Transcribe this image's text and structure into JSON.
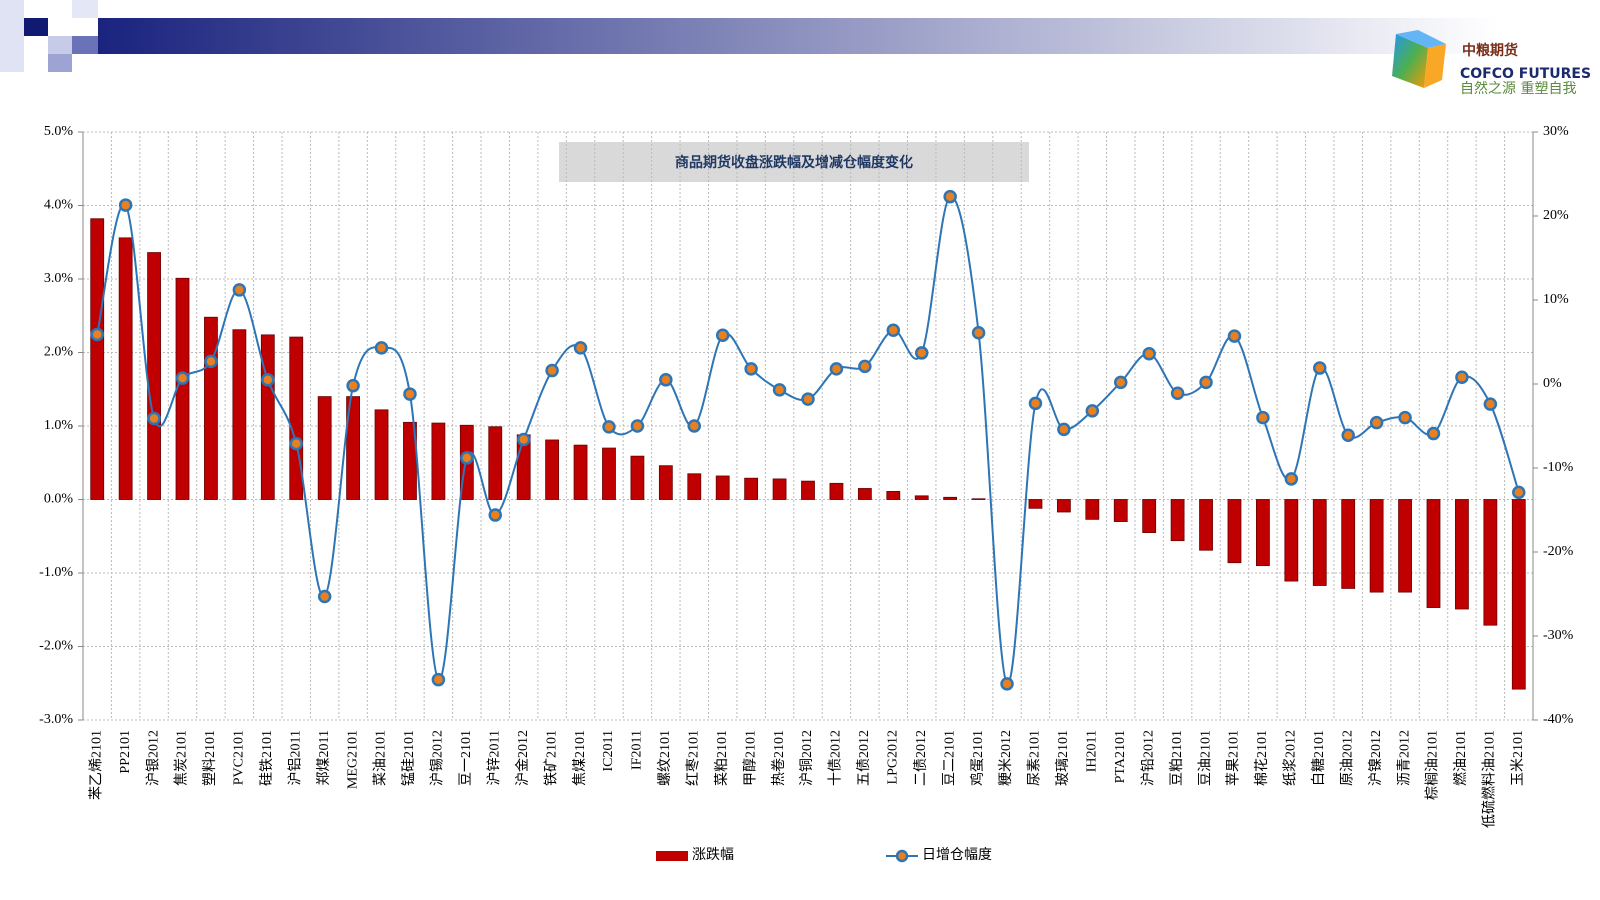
{
  "header": {
    "logo_name": "中粮期货",
    "logo_en": "COFCO FUTURES",
    "logo_slogan": "自然之源 重塑自我"
  },
  "chart_data": {
    "type": "bar-line",
    "title": "商品期货收盘涨跌幅及增减仓幅度变化",
    "categories": [
      "苯乙烯2101",
      "PP2101",
      "沪银2012",
      "焦炭2101",
      "塑料2101",
      "PVC2101",
      "硅铁2101",
      "沪铝2011",
      "郑煤2011",
      "MEG2101",
      "菜油2101",
      "锰硅2101",
      "沪锡2012",
      "豆一2101",
      "沪锌2011",
      "沪金2012",
      "铁矿2101",
      "焦煤2101",
      "IC2011",
      "IF2011",
      "螺纹2101",
      "红枣2101",
      "菜粕2101",
      "甲醇2101",
      "热卷2101",
      "沪铜2012",
      "十债2012",
      "五债2012",
      "LPG2012",
      "二债2012",
      "豆二2101",
      "鸡蛋2101",
      "粳米2012",
      "尿素2101",
      "玻璃2101",
      "IH2011",
      "PTA2101",
      "沪铅2012",
      "豆粕2101",
      "豆油2101",
      "苹果2101",
      "棉花2101",
      "纸浆2012",
      "白糖2101",
      "原油2012",
      "沪镍2012",
      "沥青2012",
      "棕榈油2101",
      "燃油2101",
      "低硫燃料油2101",
      "玉米2101"
    ],
    "series": [
      {
        "name": "涨跌幅",
        "color": "#c00000",
        "kind": "bar",
        "axis": "y",
        "values": [
          3.82,
          3.56,
          3.36,
          3.01,
          2.48,
          2.31,
          2.24,
          2.21,
          1.4,
          1.4,
          1.22,
          1.05,
          1.04,
          1.01,
          0.99,
          0.88,
          0.81,
          0.74,
          0.7,
          0.59,
          0.46,
          0.35,
          0.32,
          0.29,
          0.28,
          0.25,
          0.22,
          0.15,
          0.11,
          0.05,
          0.03,
          0.01,
          0,
          -0.12,
          -0.17,
          -0.27,
          -0.3,
          -0.45,
          -0.56,
          -0.69,
          -0.86,
          -0.9,
          -1.11,
          -1.17,
          -1.21,
          -1.26,
          -1.26,
          -1.47,
          -1.49,
          -1.71,
          -2.58
        ]
      },
      {
        "name": "日增仓幅度",
        "color": "#2e75b6",
        "marker_color": "#e8801f",
        "kind": "line",
        "axis": "y2",
        "values": [
          5.9,
          21.3,
          -4.1,
          0.7,
          2.7,
          11.2,
          0.5,
          -7.1,
          -25.3,
          -0.2,
          4.3,
          -1.2,
          -35.2,
          -8.8,
          -15.6,
          -6.6,
          1.6,
          4.3,
          -5.1,
          -5.0,
          0.5,
          -5.0,
          5.8,
          1.8,
          -0.7,
          -1.8,
          1.8,
          2.1,
          6.4,
          3.7,
          22.3,
          6.1,
          -35.7,
          -2.3,
          -5.4,
          -3.2,
          0.2,
          3.6,
          -1.1,
          0.2,
          5.7,
          -4.0,
          -11.3,
          1.9,
          -6.1,
          -4.6,
          -4.0,
          -5.9,
          0.8,
          -2.4,
          -12.9
        ]
      }
    ],
    "ylim": [
      -3,
      5
    ],
    "yticks": [
      {
        "value": -3,
        "label": "-3.0%"
      },
      {
        "value": -2,
        "label": "-2.0%"
      },
      {
        "value": -1,
        "label": "-1.0%"
      },
      {
        "value": 0,
        "label": "0.0%"
      },
      {
        "value": 1,
        "label": "1.0%"
      },
      {
        "value": 2,
        "label": "2.0%"
      },
      {
        "value": 3,
        "label": "3.0%"
      },
      {
        "value": 4,
        "label": "4.0%"
      },
      {
        "value": 5,
        "label": "5.0%"
      }
    ],
    "y2lim": [
      -40,
      30
    ],
    "y2ticks": [
      {
        "value": -40,
        "label": "-40%"
      },
      {
        "value": -30,
        "label": "-30%"
      },
      {
        "value": -20,
        "label": "-20%"
      },
      {
        "value": -10,
        "label": "-10%"
      },
      {
        "value": 0,
        "label": "0%"
      },
      {
        "value": 10,
        "label": "10%"
      },
      {
        "value": 20,
        "label": "20%"
      },
      {
        "value": 30,
        "label": "30%"
      }
    ],
    "grid": true,
    "legend": "bottom"
  }
}
